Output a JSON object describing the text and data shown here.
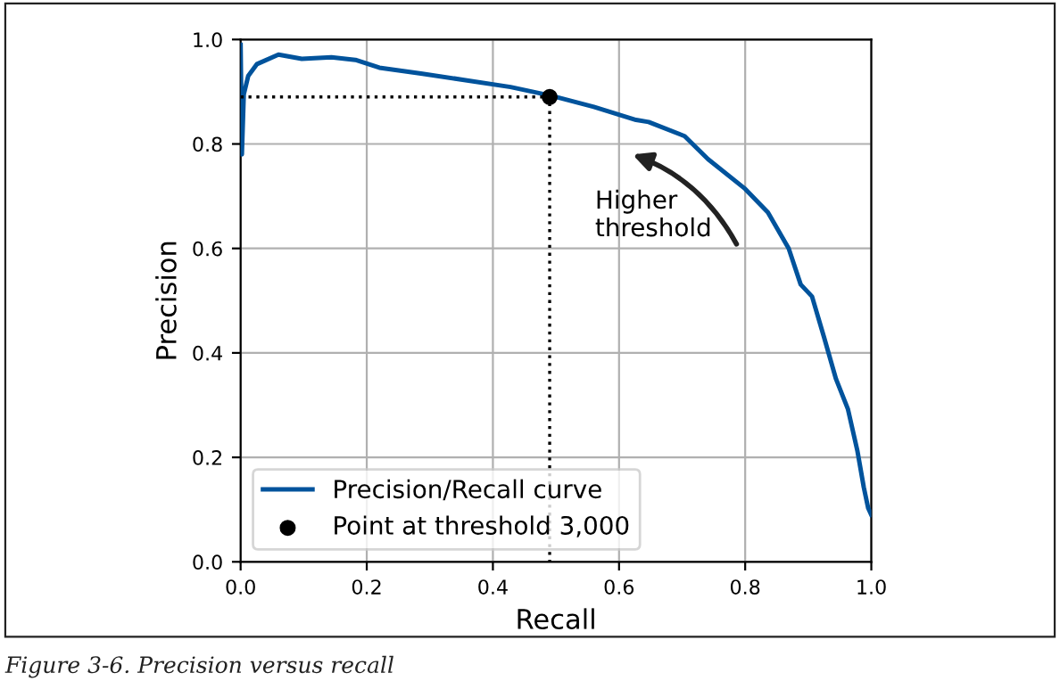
{
  "chart_data": {
    "type": "line",
    "xlabel": "Recall",
    "ylabel": "Precision",
    "xlim": [
      0,
      1
    ],
    "ylim": [
      0,
      1
    ],
    "xticks": [
      {
        "value": 0,
        "label": "0.0"
      },
      0.2,
      0.4,
      0.6,
      0.8,
      {
        "value": 1,
        "label": "1.0"
      }
    ],
    "yticks": [
      {
        "value": 0,
        "label": "0.0"
      },
      0.2,
      0.4,
      0.6,
      0.8,
      {
        "value": 1,
        "label": "1.0"
      }
    ],
    "grid": true,
    "legend": "bottom left",
    "series": [
      {
        "name": "Precision/Recall curve",
        "color": "#00539c",
        "x": [
          0,
          0.002,
          0.005,
          0.012,
          0.026,
          0.06,
          0.097,
          0.144,
          0.182,
          0.22,
          0.286,
          0.352,
          0.428,
          0.494,
          0.56,
          0.627,
          0.647,
          0.704,
          0.741,
          0.8,
          0.836,
          0.869,
          0.888,
          0.906,
          0.925,
          0.944,
          0.963,
          0.978,
          0.988,
          0.995,
          1.0
        ],
        "values": [
          0.99,
          0.78,
          0.895,
          0.93,
          0.953,
          0.971,
          0.963,
          0.966,
          0.961,
          0.946,
          0.935,
          0.923,
          0.909,
          0.892,
          0.871,
          0.846,
          0.842,
          0.815,
          0.771,
          0.714,
          0.669,
          0.6,
          0.531,
          0.508,
          0.43,
          0.35,
          0.292,
          0.212,
          0.143,
          0.103,
          0.09
        ]
      },
      {
        "type": "line",
        "color": "#000000",
        "line_style": "dotted",
        "x": [
          0,
          0.49,
          0.49
        ],
        "values": [
          0.89,
          0.89,
          0
        ]
      },
      {
        "name": "Point at threshold 3,000",
        "type": "scatter",
        "color": "#000000",
        "marker": "circle",
        "x": [
          0.49
        ],
        "values": [
          0.89
        ]
      }
    ],
    "annotations": [
      "Higher\nthreshold",
      "Figure 3-6. Precision versus recall"
    ]
  }
}
